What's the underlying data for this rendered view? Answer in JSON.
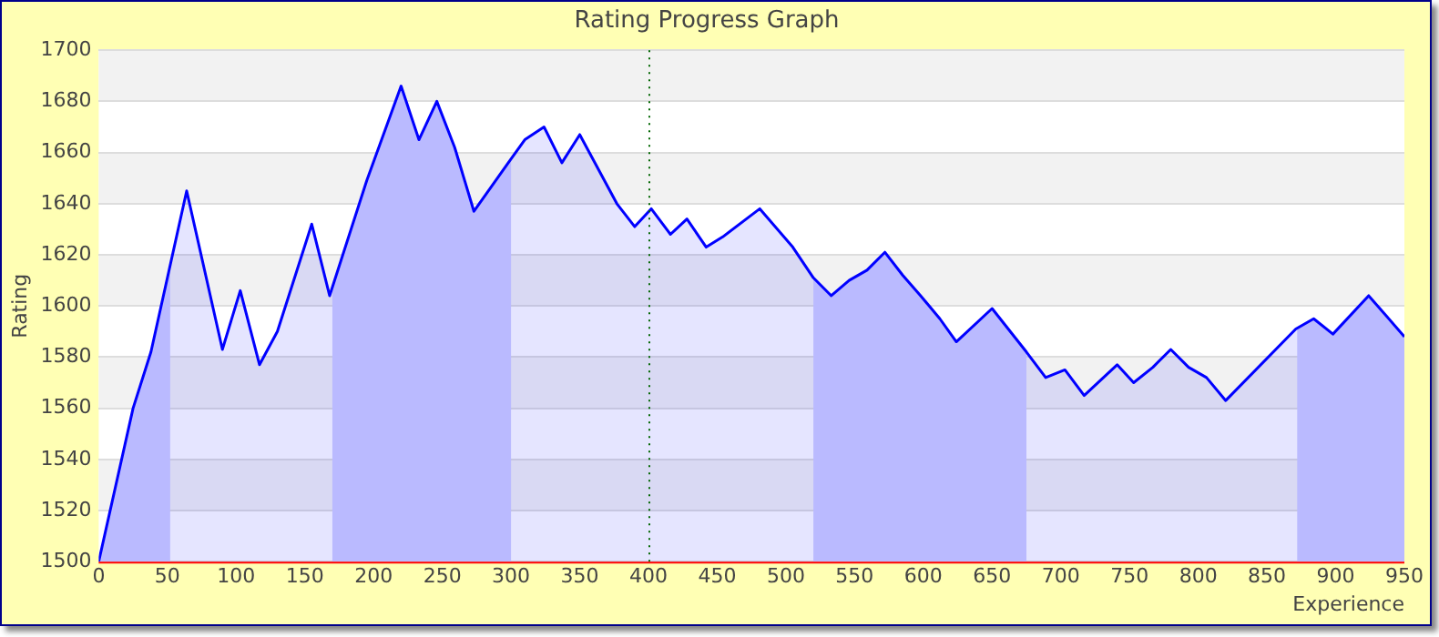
{
  "chart_data": {
    "type": "area",
    "title": "Rating Progress Graph",
    "xlabel": "Experience",
    "ylabel": "Rating",
    "x": [
      0,
      25,
      38,
      64,
      90,
      103,
      117,
      130,
      155,
      168,
      195,
      220,
      233,
      246,
      259,
      273,
      298,
      310,
      324,
      337,
      350,
      377,
      390,
      402,
      416,
      428,
      442,
      454,
      481,
      505,
      520,
      533,
      546,
      559,
      572,
      585,
      598,
      612,
      624,
      650,
      675,
      689,
      703,
      717,
      741,
      753,
      767,
      780,
      793,
      806,
      820,
      871,
      884,
      898,
      924,
      950
    ],
    "series": [
      {
        "color": "#0000ff",
        "values": [
          1500,
          1560,
          1582,
          1645,
          1583,
          1606,
          1577,
          1590,
          1632,
          1604,
          1649,
          1686,
          1665,
          1680,
          1662,
          1637,
          1656,
          1665,
          1670,
          1656,
          1667,
          1640,
          1631,
          1638,
          1628,
          1634,
          1623,
          1627,
          1638,
          1623,
          1611,
          1604,
          1610,
          1614,
          1621,
          1612,
          1604,
          1595,
          1586,
          1599,
          1582,
          1572,
          1575,
          1565,
          1577,
          1570,
          1576,
          1583,
          1576,
          1572,
          1563,
          1591,
          1595,
          1589,
          1604,
          1588
        ]
      }
    ],
    "xlim": [
      0,
      950
    ],
    "xticks": [
      0,
      50,
      100,
      150,
      200,
      250,
      300,
      350,
      400,
      450,
      500,
      550,
      600,
      650,
      700,
      750,
      800,
      850,
      900,
      950
    ],
    "ylim": [
      1500,
      1700
    ],
    "yticks": [
      1500,
      1520,
      1540,
      1560,
      1580,
      1600,
      1620,
      1640,
      1660,
      1680,
      1700
    ],
    "grid": "y",
    "legend": false,
    "ref_lines": [
      {
        "axis": "x",
        "value": 400,
        "color": "#006600",
        "line_style": "dotted"
      }
    ],
    "bands": [
      {
        "axis": "x",
        "from": 0,
        "to": 52,
        "color": "#d0d0ff"
      },
      {
        "axis": "x",
        "from": 170,
        "to": 300,
        "color": "#d0d0ff"
      },
      {
        "axis": "x",
        "from": 520,
        "to": 675,
        "color": "#d0d0ff"
      },
      {
        "axis": "x",
        "from": 872,
        "to": 950,
        "color": "#d0d0ff"
      }
    ]
  }
}
